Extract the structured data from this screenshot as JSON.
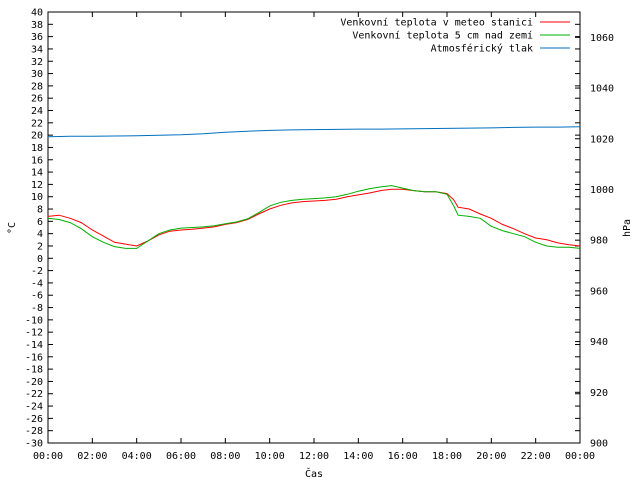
{
  "chart_data": {
    "type": "line",
    "title": "",
    "xlabel": "Čas",
    "ylabel": "°C",
    "y2label": "hPa",
    "xlim": [
      0,
      24
    ],
    "ylim": [
      -30,
      40
    ],
    "y2lim": [
      900,
      1070
    ],
    "grid": false,
    "legend_position": "top-right",
    "x_ticks": [
      "00:00",
      "02:00",
      "04:00",
      "06:00",
      "08:00",
      "10:00",
      "12:00",
      "14:00",
      "16:00",
      "18:00",
      "20:00",
      "22:00",
      "00:00"
    ],
    "y_ticks": [
      40,
      38,
      36,
      34,
      32,
      30,
      28,
      26,
      24,
      22,
      20,
      18,
      16,
      14,
      12,
      10,
      8,
      6,
      4,
      2,
      0,
      -2,
      -4,
      -6,
      -8,
      -10,
      -12,
      -14,
      -16,
      -18,
      -20,
      -22,
      -24,
      -26,
      -28,
      -30
    ],
    "y2_ticks": [
      1060,
      1040,
      1020,
      1000,
      980,
      960,
      940,
      920,
      900
    ],
    "series": [
      {
        "name": "Venkovní teplota v meteo stanici",
        "color": "#ff0000",
        "axis": "left",
        "x": [
          0,
          0.5,
          1,
          1.5,
          2,
          2.5,
          3,
          3.5,
          4,
          4.5,
          5,
          5.5,
          6,
          6.5,
          7,
          7.5,
          8,
          8.5,
          9,
          9.5,
          10,
          10.5,
          11,
          11.5,
          12,
          12.5,
          13,
          13.5,
          14,
          14.5,
          15,
          15.5,
          16,
          16.5,
          17,
          17.5,
          18,
          18.3,
          18.5,
          19,
          19.5,
          20,
          20.5,
          21,
          21.5,
          22,
          22.5,
          23,
          23.5,
          24
        ],
        "y": [
          6.8,
          7.0,
          6.5,
          5.8,
          4.6,
          3.6,
          2.6,
          2.3,
          2.0,
          2.8,
          3.8,
          4.4,
          4.6,
          4.7,
          4.9,
          5.1,
          5.5,
          5.8,
          6.3,
          7.2,
          8.0,
          8.6,
          9.0,
          9.2,
          9.3,
          9.4,
          9.6,
          10.0,
          10.3,
          10.6,
          11.0,
          11.2,
          11.2,
          11.0,
          10.8,
          10.8,
          10.5,
          9.5,
          8.3,
          8.0,
          7.2,
          6.5,
          5.5,
          4.8,
          4.0,
          3.3,
          3.0,
          2.5,
          2.2,
          2.0
        ]
      },
      {
        "name": "Venkovní teplota 5 cm nad zemí",
        "color": "#00b000",
        "axis": "left",
        "x": [
          0,
          0.5,
          1,
          1.5,
          2,
          2.5,
          3,
          3.5,
          4,
          4.5,
          5,
          5.5,
          6,
          6.5,
          7,
          7.5,
          8,
          8.5,
          9,
          9.5,
          10,
          10.5,
          11,
          11.5,
          12,
          12.5,
          13,
          13.5,
          14,
          14.5,
          15,
          15.5,
          16,
          16.5,
          17,
          17.5,
          18,
          18.3,
          18.5,
          19,
          19.5,
          20,
          20.5,
          21,
          21.5,
          22,
          22.5,
          23,
          23.5,
          24
        ],
        "y": [
          6.5,
          6.3,
          5.8,
          4.8,
          3.5,
          2.6,
          1.9,
          1.6,
          1.6,
          2.8,
          4.0,
          4.6,
          4.9,
          5.0,
          5.1,
          5.3,
          5.6,
          5.9,
          6.4,
          7.4,
          8.5,
          9.1,
          9.4,
          9.6,
          9.7,
          9.8,
          10.0,
          10.4,
          10.9,
          11.3,
          11.6,
          11.8,
          11.4,
          11.0,
          10.8,
          10.8,
          10.4,
          8.5,
          7.0,
          6.8,
          6.5,
          5.2,
          4.5,
          4.0,
          3.5,
          2.6,
          2.0,
          1.8,
          1.8,
          1.6
        ]
      },
      {
        "name": "Atmosférický tlak",
        "color": "#0070c0",
        "axis": "right",
        "x": [
          0,
          1,
          2,
          3,
          4,
          5,
          6,
          7,
          8,
          9,
          10,
          11,
          12,
          13,
          14,
          15,
          16,
          17,
          18,
          19,
          20,
          21,
          22,
          23,
          24
        ],
        "y": [
          1020.8,
          1021.0,
          1021.0,
          1021.1,
          1021.2,
          1021.4,
          1021.6,
          1022.0,
          1022.6,
          1023.0,
          1023.3,
          1023.5,
          1023.6,
          1023.7,
          1023.8,
          1023.8,
          1023.9,
          1024.0,
          1024.1,
          1024.2,
          1024.3,
          1024.5,
          1024.6,
          1024.6,
          1024.7
        ]
      }
    ]
  }
}
